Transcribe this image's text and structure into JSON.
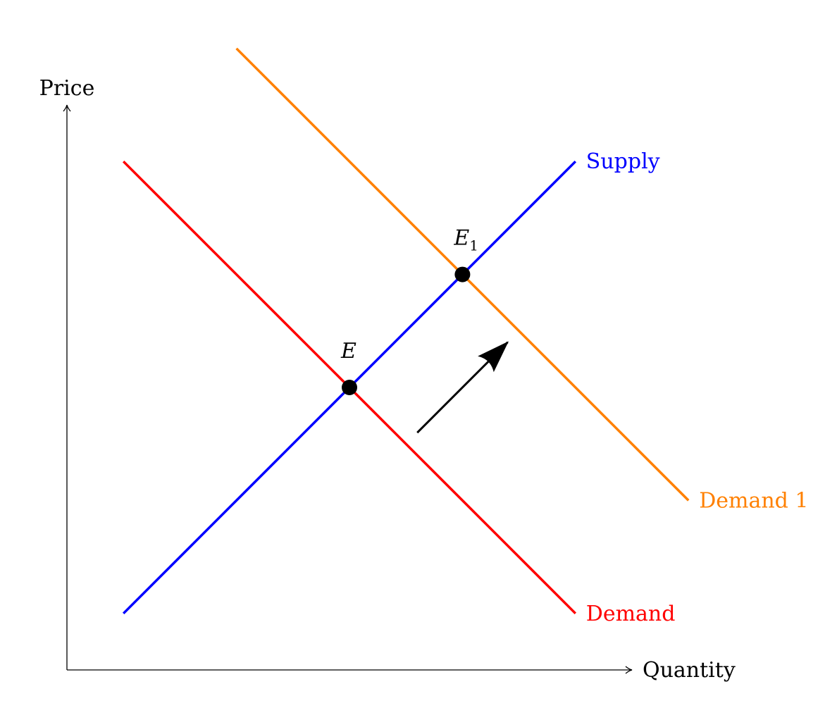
{
  "chart_data": {
    "type": "line",
    "xlabel": "Quantity",
    "ylabel": "Price",
    "xlim": [
      0,
      10
    ],
    "ylim": [
      0,
      10
    ],
    "grid": false,
    "series": [
      {
        "name": "Supply",
        "color": "#0000ff",
        "points": [
          [
            1,
            1
          ],
          [
            9,
            9
          ]
        ]
      },
      {
        "name": "Demand",
        "color": "#ff0000",
        "points": [
          [
            1,
            9
          ],
          [
            9,
            1
          ]
        ]
      },
      {
        "name": "Demand 1",
        "color": "#ff8000",
        "points": [
          [
            3,
            11
          ],
          [
            11,
            3
          ]
        ]
      }
    ],
    "points": [
      {
        "label": "E",
        "sub": "",
        "x": 5,
        "y": 5
      },
      {
        "label": "E",
        "sub": "1",
        "x": 7,
        "y": 7
      }
    ],
    "arrow": {
      "from": [
        6.2,
        4.2
      ],
      "to": [
        7.8,
        5.8
      ],
      "color": "#000000"
    }
  }
}
